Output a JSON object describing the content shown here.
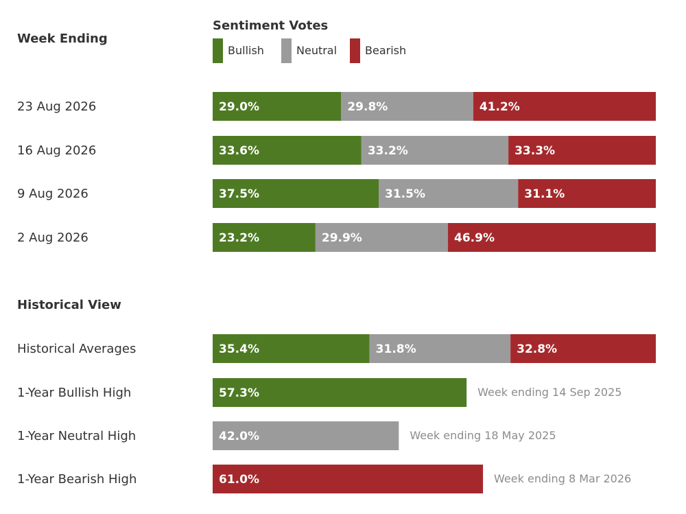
{
  "colors": {
    "bullish": "#4e7a24",
    "neutral": "#9b9b9b",
    "bearish": "#a5292c"
  },
  "week_header": "Week Ending",
  "legend": {
    "title": "Sentiment Votes",
    "items": [
      {
        "key": "bullish",
        "label": "Bullish"
      },
      {
        "key": "neutral",
        "label": "Neutral"
      },
      {
        "key": "bearish",
        "label": "Bearish"
      }
    ]
  },
  "historical_header": "Historical View",
  "chart_data": {
    "type": "bar",
    "stacked": true,
    "orientation": "horizontal",
    "unit": "%",
    "series_names": [
      "Bullish",
      "Neutral",
      "Bearish"
    ],
    "weeks": [
      {
        "label": "23 Aug 2026",
        "values": [
          29.0,
          29.8,
          41.2
        ]
      },
      {
        "label": "16 Aug 2026",
        "values": [
          33.6,
          33.2,
          33.3
        ]
      },
      {
        "label": "9 Aug 2026",
        "values": [
          37.5,
          31.5,
          31.1
        ]
      },
      {
        "label": "2 Aug 2026",
        "values": [
          23.2,
          29.9,
          46.9
        ]
      }
    ],
    "historical_average": {
      "label": "Historical Averages",
      "values": [
        35.4,
        31.8,
        32.8
      ]
    },
    "highs": [
      {
        "label": "1-Year Bullish High",
        "series": "bullish",
        "value": 57.3,
        "note": "Week ending 14 Sep 2025"
      },
      {
        "label": "1-Year Neutral High",
        "series": "neutral",
        "value": 42.0,
        "note": "Week ending 18 May 2025"
      },
      {
        "label": "1-Year Bearish High",
        "series": "bearish",
        "value": 61.0,
        "note": "Week ending 8 Mar 2026"
      }
    ]
  }
}
